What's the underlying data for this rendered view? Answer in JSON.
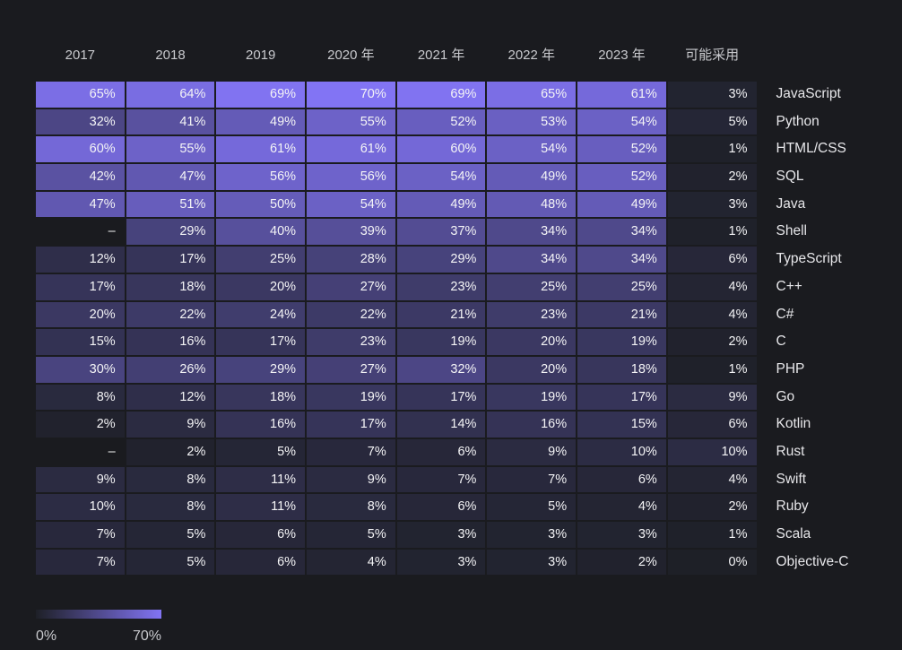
{
  "chart_data": {
    "type": "heatmap",
    "title": "",
    "columns": [
      "2017",
      "2018",
      "2019",
      "2020 年",
      "2021 年",
      "2022 年",
      "2023 年",
      "可能采用"
    ],
    "rows": [
      {
        "label": "JavaScript",
        "values": [
          65,
          64,
          69,
          70,
          69,
          65,
          61,
          3
        ]
      },
      {
        "label": "Python",
        "values": [
          32,
          41,
          49,
          55,
          52,
          53,
          54,
          5
        ]
      },
      {
        "label": "HTML/CSS",
        "values": [
          60,
          55,
          61,
          61,
          60,
          54,
          52,
          1
        ]
      },
      {
        "label": "SQL",
        "values": [
          42,
          47,
          56,
          56,
          54,
          49,
          52,
          2
        ]
      },
      {
        "label": "Java",
        "values": [
          47,
          51,
          50,
          54,
          49,
          48,
          49,
          3
        ]
      },
      {
        "label": "Shell",
        "values": [
          null,
          29,
          40,
          39,
          37,
          34,
          34,
          1
        ]
      },
      {
        "label": "TypeScript",
        "values": [
          12,
          17,
          25,
          28,
          29,
          34,
          34,
          6
        ]
      },
      {
        "label": "C++",
        "values": [
          17,
          18,
          20,
          27,
          23,
          25,
          25,
          4
        ]
      },
      {
        "label": "C#",
        "values": [
          20,
          22,
          24,
          22,
          21,
          23,
          21,
          4
        ]
      },
      {
        "label": "C",
        "values": [
          15,
          16,
          17,
          23,
          19,
          20,
          19,
          2
        ]
      },
      {
        "label": "PHP",
        "values": [
          30,
          26,
          29,
          27,
          32,
          20,
          18,
          1
        ]
      },
      {
        "label": "Go",
        "values": [
          8,
          12,
          18,
          19,
          17,
          19,
          17,
          9
        ]
      },
      {
        "label": "Kotlin",
        "values": [
          2,
          9,
          16,
          17,
          14,
          16,
          15,
          6
        ]
      },
      {
        "label": "Rust",
        "values": [
          null,
          2,
          5,
          7,
          6,
          9,
          10,
          10
        ]
      },
      {
        "label": "Swift",
        "values": [
          9,
          8,
          11,
          9,
          7,
          7,
          6,
          4
        ]
      },
      {
        "label": "Ruby",
        "values": [
          10,
          8,
          11,
          8,
          6,
          5,
          4,
          2
        ]
      },
      {
        "label": "Scala",
        "values": [
          7,
          5,
          6,
          5,
          3,
          3,
          3,
          1
        ]
      },
      {
        "label": "Objective-C",
        "values": [
          7,
          5,
          6,
          4,
          3,
          3,
          2,
          0
        ]
      }
    ],
    "value_suffix": "%",
    "missing_display": "–",
    "color_scale": {
      "min": 0,
      "max": 70,
      "min_color": "#1e2027",
      "max_color": "#8274f4"
    },
    "legend": {
      "min_label": "0%",
      "max_label": "70%"
    },
    "layout_hints": {
      "legend_position": "bottom-left",
      "row_labels_position": "right",
      "grid": "gap-lines"
    }
  }
}
